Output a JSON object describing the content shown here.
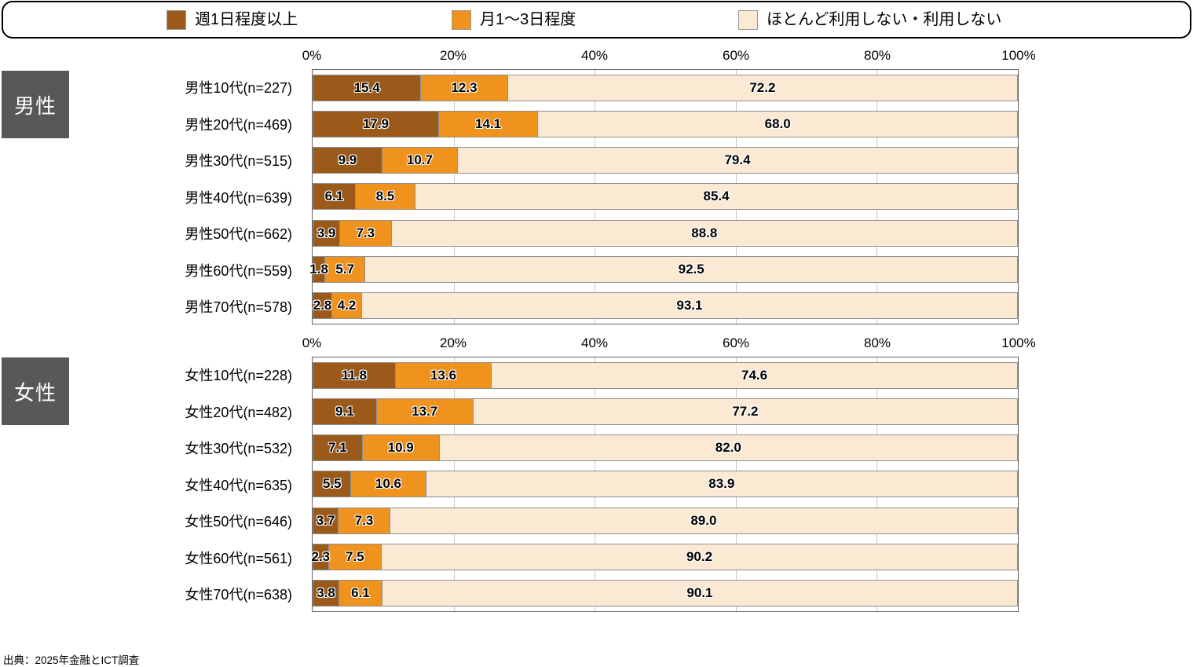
{
  "legend": {
    "items": [
      {
        "label": "週1日程度以上",
        "color": "#9B5A19"
      },
      {
        "label": "月1〜3日程度",
        "color": "#F0931E"
      },
      {
        "label": "ほとんど利用しない・利用しない",
        "color": "#FBE9D3"
      }
    ]
  },
  "chart_data": {
    "type": "bar",
    "stacked": true,
    "orientation": "horizontal",
    "xlim": [
      0,
      100
    ],
    "x_ticks": [
      "0%",
      "20%",
      "40%",
      "60%",
      "80%",
      "100%"
    ],
    "grid": true,
    "legend_position": "top",
    "value_format": "one-decimal",
    "series_names": [
      "週1日程度以上",
      "月1〜3日程度",
      "ほとんど利用しない・利用しない"
    ],
    "series_colors": [
      "#9B5A19",
      "#F0931E",
      "#FBE9D3"
    ],
    "groups": [
      {
        "group_label": "男性",
        "categories": [
          "男性10代(n=227)",
          "男性20代(n=469)",
          "男性30代(n=515)",
          "男性40代(n=639)",
          "男性50代(n=662)",
          "男性60代(n=559)",
          "男性70代(n=578)"
        ],
        "series": [
          {
            "name": "週1日程度以上",
            "values": [
              15.4,
              17.9,
              9.9,
              6.1,
              3.9,
              1.8,
              2.8
            ]
          },
          {
            "name": "月1〜3日程度",
            "values": [
              12.3,
              14.1,
              10.7,
              8.5,
              7.3,
              5.7,
              4.2
            ]
          },
          {
            "name": "ほとんど利用しない・利用しない",
            "values": [
              72.2,
              68.0,
              79.4,
              85.4,
              88.8,
              92.5,
              93.1
            ]
          }
        ]
      },
      {
        "group_label": "女性",
        "categories": [
          "女性10代(n=228)",
          "女性20代(n=482)",
          "女性30代(n=532)",
          "女性40代(n=635)",
          "女性50代(n=646)",
          "女性60代(n=561)",
          "女性70代(n=638)"
        ],
        "series": [
          {
            "name": "週1日程度以上",
            "values": [
              11.8,
              9.1,
              7.1,
              5.5,
              3.7,
              2.3,
              3.8
            ]
          },
          {
            "name": "月1〜3日程度",
            "values": [
              13.6,
              13.7,
              10.9,
              10.6,
              7.3,
              7.5,
              6.1
            ]
          },
          {
            "name": "ほとんど利用しない・利用しない",
            "values": [
              74.6,
              77.2,
              82.0,
              83.9,
              89.0,
              90.2,
              90.1
            ]
          }
        ]
      }
    ]
  },
  "source": "出典：2025年金融とICT調査"
}
